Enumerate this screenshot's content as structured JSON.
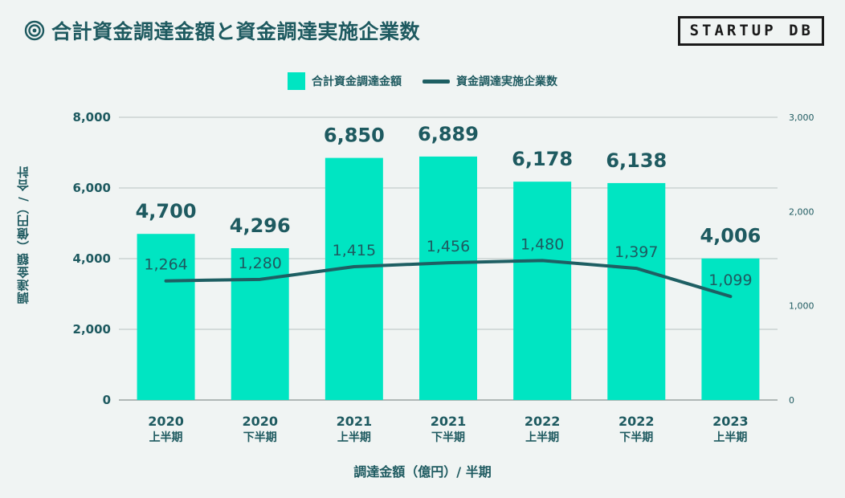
{
  "header": {
    "title": "合計資金調達金額と資金調達実施企業数",
    "logo_text": "STARTUP DB"
  },
  "legend": {
    "bar_label": "合計資金調達金額",
    "line_label": "資金調達実施企業数"
  },
  "axes": {
    "left_label": "調達金額（億円）/ 合計",
    "x_label": "調達金額（億円）/ 半期"
  },
  "colors": {
    "bar": "#00e5c2",
    "line": "#1e5f63",
    "text": "#1e5a60",
    "grid": "#b9c2c1",
    "background": "#f0f4f3"
  },
  "chart_data": {
    "type": "bar",
    "title": "合計資金調達金額と資金調達実施企業数",
    "categories": [
      {
        "year": "2020",
        "half": "上半期"
      },
      {
        "year": "2020",
        "half": "下半期"
      },
      {
        "year": "2021",
        "half": "上半期"
      },
      {
        "year": "2021",
        "half": "下半期"
      },
      {
        "year": "2022",
        "half": "上半期"
      },
      {
        "year": "2022",
        "half": "下半期"
      },
      {
        "year": "2023",
        "half": "上半期"
      }
    ],
    "series": [
      {
        "name": "合計資金調達金額",
        "type": "bar",
        "axis": "left",
        "values": [
          4700,
          4296,
          6850,
          6889,
          6178,
          6138,
          4006
        ],
        "labels": [
          "4,700",
          "4,296",
          "6,850",
          "6,889",
          "6,178",
          "6,138",
          "4,006"
        ]
      },
      {
        "name": "資金調達実施企業数",
        "type": "line",
        "axis": "right",
        "values": [
          1264,
          1280,
          1415,
          1456,
          1480,
          1397,
          1099
        ],
        "labels": [
          "1,264",
          "1,280",
          "1,415",
          "1,456",
          "1,480",
          "1,397",
          "1,099"
        ]
      }
    ],
    "y_left": {
      "lim": [
        0,
        8000
      ],
      "ticks": [
        0,
        2000,
        4000,
        6000,
        8000
      ],
      "tick_labels": [
        "0",
        "2,000",
        "4,000",
        "6,000",
        "8,000"
      ]
    },
    "y_right": {
      "lim": [
        0,
        3000
      ],
      "ticks": [
        0,
        1000,
        2000,
        3000
      ],
      "tick_labels": [
        "0",
        "1,000",
        "2,000",
        "3,000"
      ]
    },
    "xlabel": "調達金額（億円）/ 半期",
    "ylabel": "調達金額（億円）/ 合計",
    "grid": true,
    "legend_position": "top-center"
  }
}
